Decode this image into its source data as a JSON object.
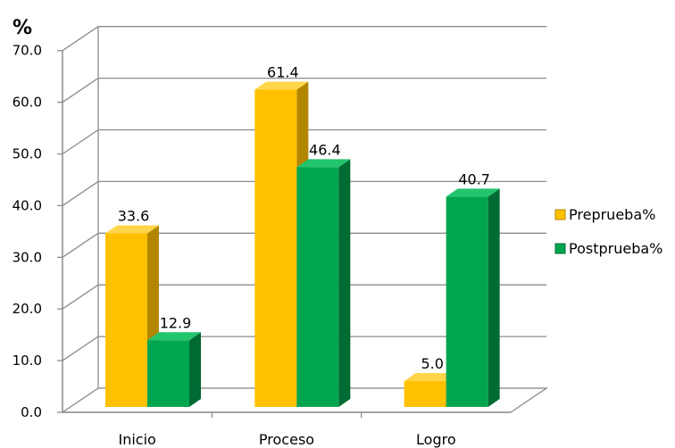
{
  "chart_data": {
    "type": "bar",
    "unit_label": "%",
    "categories": [
      "Inicio",
      "Proceso",
      "Logro"
    ],
    "series": [
      {
        "name": "Preprueba%",
        "values": [
          33.6,
          61.4,
          5.0
        ],
        "labels": [
          "33.6",
          "61.4",
          "5.0"
        ],
        "color": "#FFC000",
        "side_color": "#B38600",
        "top_color": "#FFD54A"
      },
      {
        "name": "Postprueba%",
        "values": [
          12.9,
          46.4,
          40.7
        ],
        "labels": [
          "12.9",
          "46.4",
          "40.7"
        ],
        "color": "#00A550",
        "side_color": "#006B33",
        "top_color": "#22C46C"
      }
    ],
    "yticks": [
      "0.0",
      "10.0",
      "20.0",
      "30.0",
      "40.0",
      "50.0",
      "60.0",
      "70.0"
    ],
    "ylim": [
      0,
      70
    ],
    "grid": true,
    "legend_position": "right"
  }
}
